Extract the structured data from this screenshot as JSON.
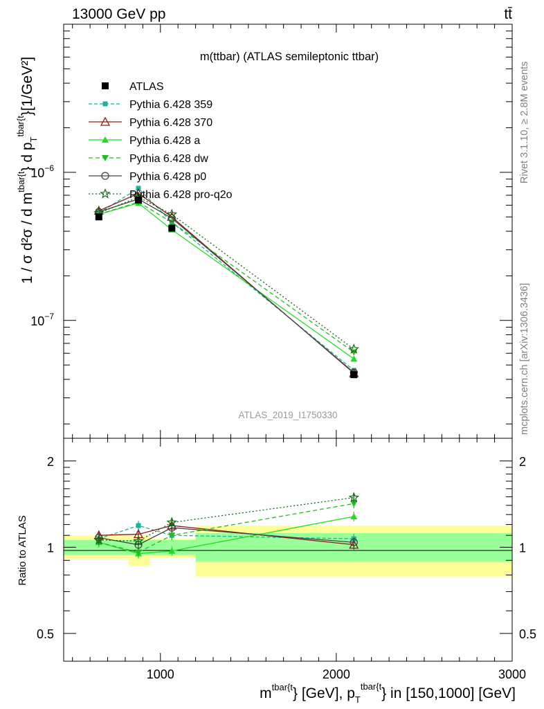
{
  "header": {
    "left": "13000 GeV pp",
    "right": "tt̄"
  },
  "side_labels": {
    "rivet": "Rivet 3.1.10, ≥ 2.8M events",
    "mcplots": "mcplots.cern.ch [arXiv:1306.3436]"
  },
  "chart_data": {
    "type": "line",
    "title": "m(ttbar) (ATLAS semileptonic ttbar)",
    "watermark": "ATLAS_2019_I1750330",
    "xlabel": {
      "main": "m",
      "sup1": "tbar{t",
      "mid": "} [GeV], p",
      "sub": "T",
      "sup2": "tbar{t",
      "tail": "} in [150,1000] [GeV]"
    },
    "ylabel": {
      "main": "1 / σ d²σ / d m",
      "sup1": "tbar{t",
      "mid": "} d p",
      "sub": "T",
      "sup2": "tbar{t",
      "tail": "}[1/GeV²]"
    },
    "ratio_ylabel": "Ratio to ATLAS",
    "xlim": [
      450,
      3000
    ],
    "ylim": [
      1.6e-08,
      1e-05
    ],
    "yscale": "log",
    "ratio_ylim": [
      0.4,
      2.4
    ],
    "ratio_yscale": "log",
    "x_ticks": [
      {
        "value": 1000,
        "label": "1000"
      },
      {
        "value": 2000,
        "label": "2000"
      },
      {
        "value": 3000,
        "label": "3000"
      }
    ],
    "y_ticks": [
      {
        "value": 1e-07,
        "label": "10",
        "exp": "−7"
      },
      {
        "value": 1e-06,
        "label": "10",
        "exp": "−6"
      }
    ],
    "ratio_ticks": [
      {
        "value": 0.5,
        "label": "0.5"
      },
      {
        "value": 1,
        "label": "1"
      },
      {
        "value": 2,
        "label": "2"
      }
    ],
    "bins": [
      {
        "lo": 450,
        "hi": 820,
        "center": 650
      },
      {
        "lo": 820,
        "hi": 940,
        "center": 875
      },
      {
        "lo": 940,
        "hi": 1200,
        "center": 1065
      },
      {
        "lo": 1200,
        "hi": 3000,
        "center": 2100
      }
    ],
    "band_inner": [
      [
        0.94,
        1.06
      ],
      [
        0.94,
        1.06
      ],
      [
        0.94,
        1.06
      ],
      [
        0.89,
        1.12
      ]
    ],
    "band_outer": [
      [
        0.91,
        1.1
      ],
      [
        0.86,
        1.1
      ],
      [
        0.92,
        1.07
      ],
      [
        0.79,
        1.19
      ]
    ],
    "legend_position": "top-left",
    "series": [
      {
        "name": "ATLAS",
        "color": "#000000",
        "dash": "",
        "marker": "square",
        "values": [
          5e-07,
          6.5e-07,
          4.2e-07,
          4.3e-08
        ],
        "ratio": [
          1,
          1,
          1,
          1
        ]
      },
      {
        "name": "Pythia 6.428 359",
        "color": "#1ab299",
        "dash": "5,3",
        "marker": "filled-square",
        "values": [
          5.3e-07,
          7.8e-07,
          4.6e-07,
          4.6e-08
        ],
        "ratio": [
          1.07,
          1.19,
          1.1,
          1.07
        ]
      },
      {
        "name": "Pythia 6.428 370",
        "color": "#8b1a1a",
        "dash": "",
        "marker": "open-triangle",
        "values": [
          5.5e-07,
          7.2e-07,
          5e-07,
          4.4e-08
        ],
        "ratio": [
          1.1,
          1.11,
          1.19,
          1.02
        ]
      },
      {
        "name": "Pythia 6.428 a",
        "color": "#22dd22",
        "dash": "",
        "marker": "filled-triangle",
        "values": [
          5.2e-07,
          6.2e-07,
          4.1e-07,
          5.5e-08
        ],
        "ratio": [
          1.04,
          0.95,
          0.97,
          1.28
        ]
      },
      {
        "name": "Pythia 6.428 dw",
        "color": "#22bb22",
        "dash": "6,4",
        "marker": "filled-triangle-down",
        "values": [
          5.2e-07,
          6.3e-07,
          4.6e-07,
          6.1e-08
        ],
        "ratio": [
          1.04,
          0.96,
          1.1,
          1.42
        ]
      },
      {
        "name": "Pythia 6.428 p0",
        "color": "#444444",
        "dash": "",
        "marker": "open-circle",
        "values": [
          5.4e-07,
          6.6e-07,
          4.9e-07,
          4.45e-08
        ],
        "ratio": [
          1.08,
          1.02,
          1.17,
          1.04
        ]
      },
      {
        "name": "Pythia 6.428 pro-q2o",
        "color": "#116611",
        "dash": "2,3",
        "marker": "open-star",
        "values": [
          5.3e-07,
          6.8e-07,
          5.2e-07,
          6.4e-08
        ],
        "ratio": [
          1.06,
          1.05,
          1.22,
          1.49
        ]
      }
    ]
  }
}
